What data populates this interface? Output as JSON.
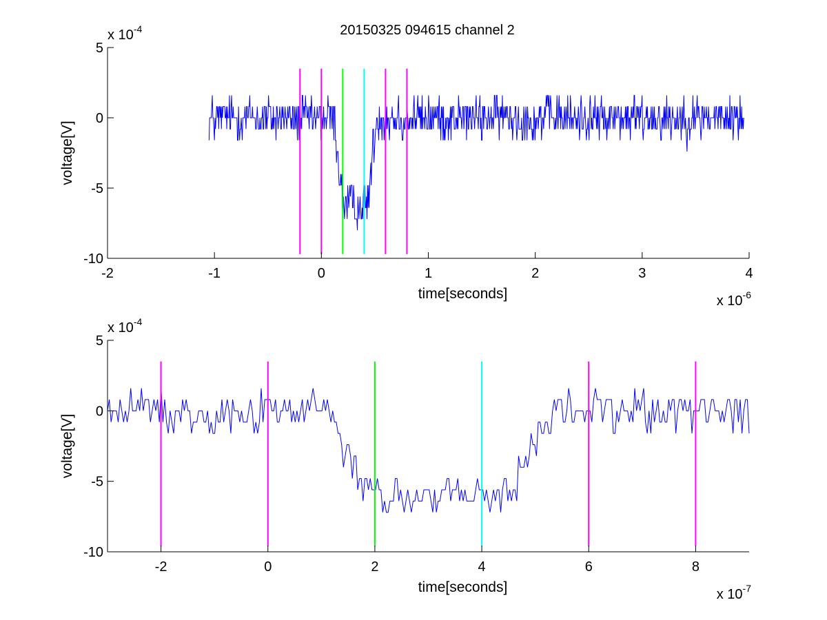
{
  "figure": {
    "title": "20150325 094615 channel 2"
  },
  "marker_colors": {
    "magenta": "#ff00ff",
    "green": "#00ff00",
    "cyan": "#00ffff"
  },
  "chart_data": [
    {
      "type": "line",
      "xlabel": "time[seconds]",
      "ylabel": "voltage[V]",
      "x_multiplier": {
        "base": "x 10",
        "exp": "-6"
      },
      "y_multiplier": {
        "base": "x 10",
        "exp": "-4"
      },
      "xlim": [
        -2,
        4
      ],
      "ylim": [
        -10,
        5
      ],
      "xticks": [
        -2,
        -1,
        0,
        1,
        2,
        3,
        4
      ],
      "xtick_labels": [
        "-2",
        "-1",
        "0",
        "1",
        "2",
        "3",
        "4"
      ],
      "yticks": [
        5,
        0,
        -5,
        -10
      ],
      "ytick_labels": [
        "5",
        "0",
        "-5",
        "-10"
      ],
      "grid": false,
      "series": [
        {
          "color": "#0000ff",
          "x_range": [
            -1.05,
            3.95
          ],
          "points": 1000,
          "baseline": 0,
          "baseline_min": -3.2,
          "baseline_max": 3.2,
          "dip": {
            "start": 0.12,
            "bottom_start": 0.2,
            "bottom_end": 0.43,
            "end": 0.52,
            "level": -6.2
          }
        }
      ],
      "markers": [
        {
          "x": -0.2,
          "color": "magenta",
          "ymin": -9.7,
          "ymax": 3.5
        },
        {
          "x": 0.0,
          "color": "magenta",
          "ymin": -9.7,
          "ymax": 3.5
        },
        {
          "x": 0.2,
          "color": "green",
          "ymin": -9.7,
          "ymax": 3.5
        },
        {
          "x": 0.4,
          "color": "cyan",
          "ymin": -9.7,
          "ymax": 3.5
        },
        {
          "x": 0.6,
          "color": "magenta",
          "ymin": -9.7,
          "ymax": 3.5
        },
        {
          "x": 0.8,
          "color": "magenta",
          "ymin": -9.7,
          "ymax": 3.5
        }
      ]
    },
    {
      "type": "line",
      "xlabel": "time[seconds]",
      "ylabel": "voltage[V]",
      "x_multiplier": {
        "base": "x 10",
        "exp": "-7"
      },
      "y_multiplier": {
        "base": "x 10",
        "exp": "-4"
      },
      "xlim": [
        -3,
        9
      ],
      "ylim": [
        -10,
        5
      ],
      "xticks": [
        -2,
        0,
        2,
        4,
        6,
        8
      ],
      "xtick_labels": [
        "-2",
        "0",
        "2",
        "4",
        "6",
        "8"
      ],
      "yticks": [
        5,
        0,
        -5,
        -10
      ],
      "ytick_labels": [
        "5",
        "0",
        "-5",
        "-10"
      ],
      "grid": false,
      "series": [
        {
          "color": "#0000ff",
          "x_range": [
            -3,
            9
          ],
          "points": 360,
          "baseline": 0,
          "baseline_min": -3.2,
          "baseline_max": 2.4,
          "dip": {
            "start": 1.1,
            "bottom_start": 1.9,
            "bottom_end": 4.4,
            "end": 5.4,
            "level": -6.2
          }
        }
      ],
      "markers": [
        {
          "x": -2,
          "color": "magenta",
          "ymin": -9.6,
          "ymax": 3.5
        },
        {
          "x": 0,
          "color": "magenta",
          "ymin": -9.6,
          "ymax": 3.5
        },
        {
          "x": 2,
          "color": "green",
          "ymin": -9.6,
          "ymax": 3.5
        },
        {
          "x": 4,
          "color": "cyan",
          "ymin": -9.6,
          "ymax": 3.5
        },
        {
          "x": 6,
          "color": "magenta",
          "ymin": -9.6,
          "ymax": 3.5
        },
        {
          "x": 8,
          "color": "magenta",
          "ymin": -9.6,
          "ymax": 3.5
        }
      ]
    }
  ]
}
